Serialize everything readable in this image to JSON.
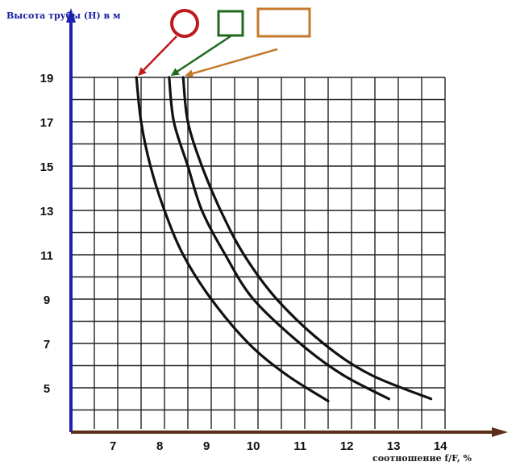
{
  "chart_data": {
    "type": "line",
    "ylabel": "Высота трубы (Н) в м",
    "xlabel": "соотношение f/F, %",
    "x_ticks": [
      "7",
      "8",
      "9",
      "10",
      "11",
      "12",
      "13",
      "14"
    ],
    "y_ticks": [
      "5",
      "7",
      "9",
      "11",
      "13",
      "15",
      "17",
      "19"
    ],
    "xlim": [
      6.1,
      14.1
    ],
    "ylim": [
      3.0,
      19.0
    ],
    "grid": true,
    "legend_placement": "top",
    "series": [
      {
        "marker": "circle",
        "marker_color": "#c0191d",
        "points": [
          [
            7.5,
            19
          ],
          [
            7.6,
            17
          ],
          [
            7.8,
            15
          ],
          [
            8.1,
            13
          ],
          [
            8.5,
            11
          ],
          [
            9.1,
            9
          ],
          [
            9.9,
            7
          ],
          [
            10.7,
            5.6
          ],
          [
            11.6,
            4.4
          ]
        ]
      },
      {
        "marker": "square",
        "marker_color": "#1e6a1e",
        "points": [
          [
            8.2,
            19
          ],
          [
            8.3,
            17
          ],
          [
            8.6,
            15
          ],
          [
            8.9,
            13
          ],
          [
            9.4,
            11
          ],
          [
            10.0,
            9
          ],
          [
            11.0,
            7
          ],
          [
            11.9,
            5.6
          ],
          [
            12.9,
            4.5
          ]
        ]
      },
      {
        "marker": "rectangle",
        "marker_color": "#c47a2a",
        "points": [
          [
            8.5,
            19
          ],
          [
            8.6,
            17
          ],
          [
            8.9,
            15
          ],
          [
            9.3,
            13
          ],
          [
            9.8,
            11
          ],
          [
            10.5,
            9
          ],
          [
            11.5,
            7
          ],
          [
            12.5,
            5.6
          ],
          [
            13.8,
            4.5
          ]
        ]
      }
    ]
  }
}
